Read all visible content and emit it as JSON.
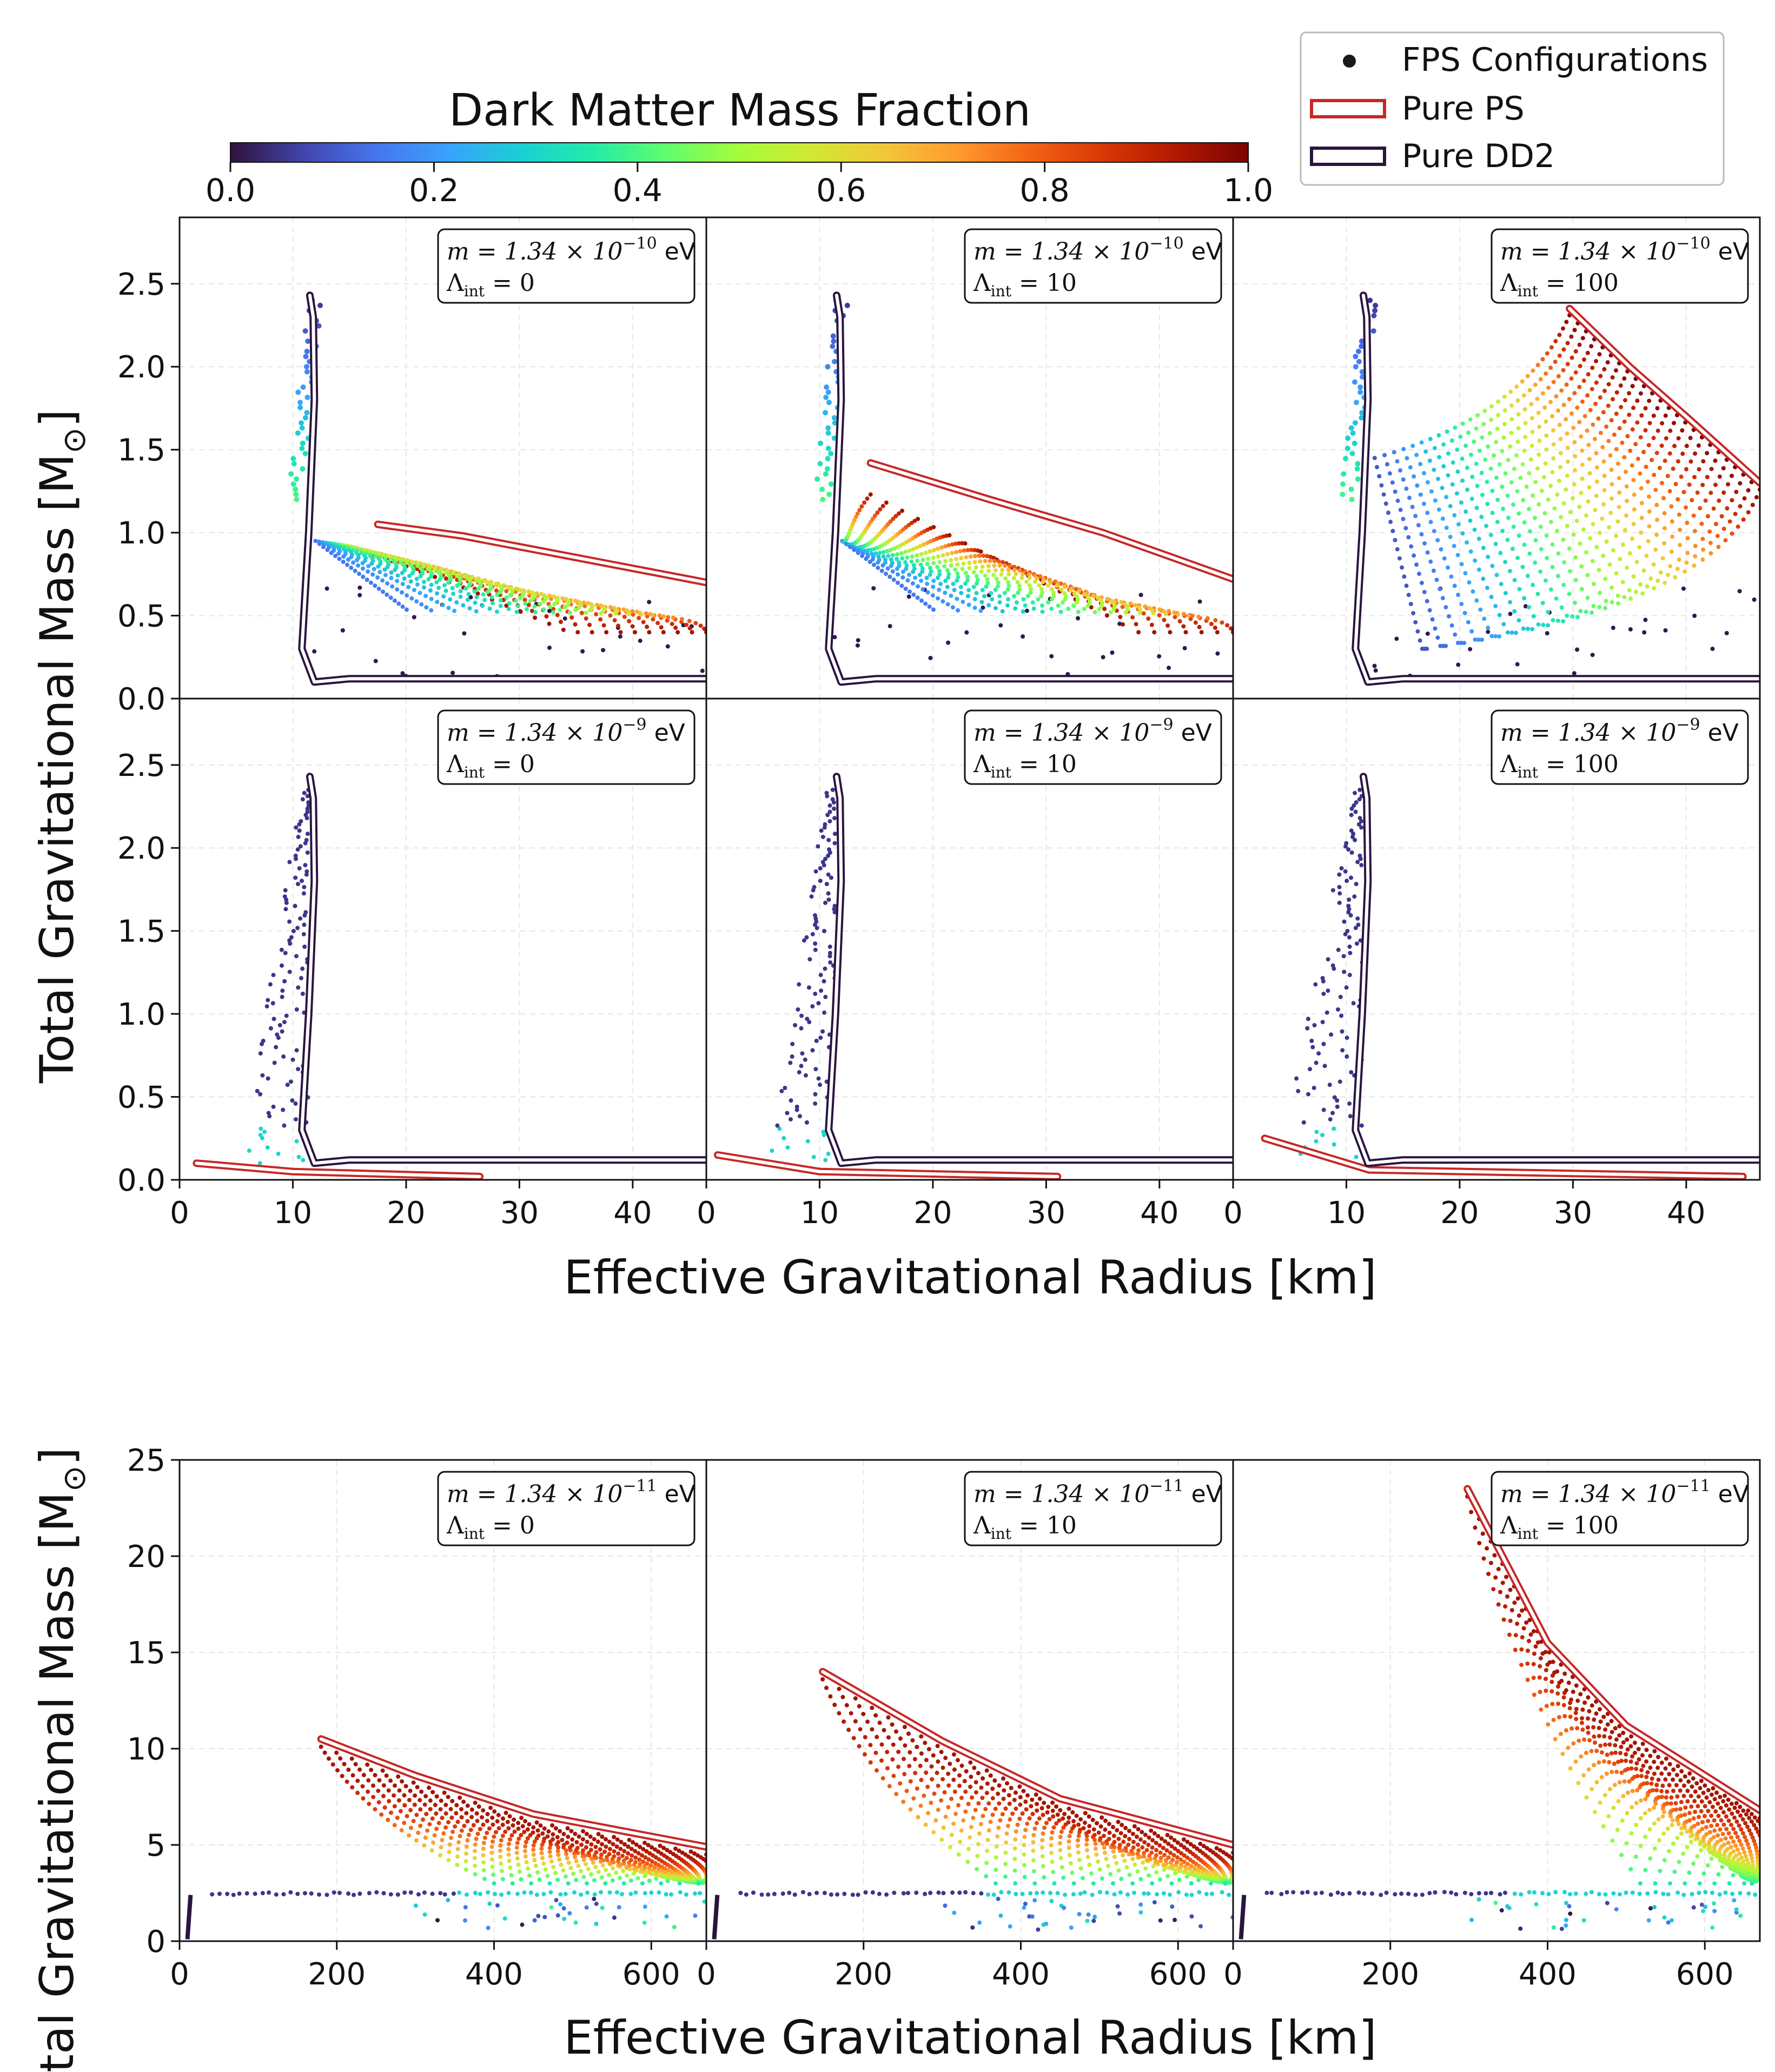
{
  "figure": {
    "colorbar": {
      "title": "Dark Matter Mass Fraction",
      "range": [
        0.0,
        1.0
      ],
      "tick_labels": [
        "0.0",
        "0.2",
        "0.4",
        "0.6",
        "0.8",
        "1.0"
      ],
      "colormap": [
        "#30123b",
        "#4145ab",
        "#4675ed",
        "#39a2fc",
        "#1bcfd4",
        "#24eca6",
        "#61fc6c",
        "#a4fc3b",
        "#d1e834",
        "#f3c63a",
        "#fe9b2d",
        "#f36315",
        "#d93806",
        "#b11901",
        "#7a0402"
      ]
    },
    "legend": {
      "items": [
        {
          "label": "FPS Configurations",
          "kind": "dot",
          "color": "#1a1a1a"
        },
        {
          "label": "Pure PS",
          "kind": "band",
          "color": "#c62828"
        },
        {
          "label": "Pure DD2",
          "kind": "band",
          "color": "#2a1540"
        }
      ]
    },
    "top_block": {
      "ylabel": "Total Gravitational Mass [M",
      "ylabel_sub": "⊙",
      "ylabel_close": "]",
      "xlabel": "Effective Gravitational Radius [km]",
      "xlim": [
        0,
        46.5
      ],
      "ylim": [
        0,
        2.9
      ],
      "xtick_labels": [
        "0",
        "10",
        "20",
        "30",
        "40"
      ],
      "ytick_labels": [
        "0.0",
        "0.5",
        "1.0",
        "1.5",
        "2.0",
        "2.5"
      ]
    },
    "bottom_block": {
      "ylabel": "Total Gravitational Mass [M",
      "ylabel_sub": "⊙",
      "ylabel_close": "]",
      "xlabel": "Effective Gravitational Radius [km]",
      "xlim": [
        0,
        670
      ],
      "ylim": [
        0,
        25
      ],
      "xtick_labels": [
        "0",
        "200",
        "400",
        "600"
      ],
      "ytick_labels": [
        "0",
        "5",
        "10",
        "15",
        "20",
        "25"
      ]
    },
    "annotation_units": "eV",
    "annotation_lambda_prefix": "Λ",
    "annotation_lambda_sub": "int",
    "annotation_m_prefix": "m = 1.34 × 10",
    "panels": [
      {
        "id": "r1c1",
        "mass_exp": "−10",
        "lambda": "= 0"
      },
      {
        "id": "r1c2",
        "mass_exp": "−10",
        "lambda": "= 10"
      },
      {
        "id": "r1c3",
        "mass_exp": "−10",
        "lambda": "= 100"
      },
      {
        "id": "r2c1",
        "mass_exp": "−9",
        "lambda": "= 0"
      },
      {
        "id": "r2c2",
        "mass_exp": "−9",
        "lambda": "= 10"
      },
      {
        "id": "r2c3",
        "mass_exp": "−9",
        "lambda": "= 100"
      },
      {
        "id": "r3c1",
        "mass_exp": "−11",
        "lambda": "= 0"
      },
      {
        "id": "r3c2",
        "mass_exp": "−11",
        "lambda": "= 10"
      },
      {
        "id": "r3c3",
        "mass_exp": "−11",
        "lambda": "= 100"
      }
    ]
  },
  "chart_data": [
    {
      "type": "scatter",
      "panel": "r1c1",
      "title": "m = 1.34 × 10^−10 eV, Λint = 0",
      "xlabel": "Effective Gravitational Radius [km]",
      "ylabel": "Total Gravitational Mass [M⊙]",
      "xlim": [
        0,
        46.5
      ],
      "ylim": [
        0,
        2.9
      ],
      "dd2_curve": [
        [
          11.9,
          0.1
        ],
        [
          10.8,
          0.3
        ],
        [
          11.4,
          1.0
        ],
        [
          11.9,
          1.8
        ],
        [
          11.8,
          2.3
        ],
        [
          11.5,
          2.43
        ]
      ],
      "ps_curve": [
        [
          17.5,
          1.05
        ],
        [
          25,
          0.98
        ],
        [
          35,
          0.85
        ],
        [
          46.5,
          0.7
        ]
      ],
      "fps_sequences": 24
    },
    {
      "type": "scatter",
      "panel": "r1c2",
      "title": "m = 1.34 × 10^−10 eV, Λint = 10",
      "xlabel": "Effective Gravitational Radius [km]",
      "ylabel": "Total Gravitational Mass [M⊙]",
      "xlim": [
        0,
        46.5
      ],
      "ylim": [
        0,
        2.9
      ],
      "dd2_curve": [
        [
          11.9,
          0.1
        ],
        [
          10.8,
          0.3
        ],
        [
          11.4,
          1.0
        ],
        [
          11.9,
          1.8
        ],
        [
          11.8,
          2.3
        ],
        [
          11.5,
          2.43
        ]
      ],
      "ps_curve": [
        [
          14.5,
          1.42
        ],
        [
          25,
          1.2
        ],
        [
          35,
          1.0
        ],
        [
          46.5,
          0.72
        ]
      ],
      "fps_sequences": 24
    },
    {
      "type": "scatter",
      "panel": "r1c3",
      "title": "m = 1.34 × 10^−10 eV, Λint = 100",
      "xlabel": "Effective Gravitational Radius [km]",
      "ylabel": "Total Gravitational Mass [M⊙]",
      "xlim": [
        0,
        46.5
      ],
      "ylim": [
        0,
        2.9
      ],
      "dd2_curve": [
        [
          11.9,
          0.1
        ],
        [
          10.8,
          0.3
        ],
        [
          11.4,
          1.0
        ],
        [
          11.9,
          1.8
        ],
        [
          11.8,
          2.3
        ],
        [
          11.5,
          2.43
        ]
      ],
      "ps_curve": [
        [
          29.7,
          2.35
        ],
        [
          35,
          2.0
        ],
        [
          40,
          1.7
        ],
        [
          46.5,
          1.3
        ]
      ],
      "fps_sequences": 24
    },
    {
      "type": "scatter",
      "panel": "r2c1",
      "title": "m = 1.34 × 10^−9 eV, Λint = 0",
      "xlabel": "Effective Gravitational Radius [km]",
      "ylabel": "Total Gravitational Mass [M⊙]",
      "xlim": [
        0,
        46.5
      ],
      "ylim": [
        0,
        2.9
      ],
      "dd2_curve": [
        [
          11.9,
          0.1
        ],
        [
          10.8,
          0.3
        ],
        [
          11.4,
          1.0
        ],
        [
          11.9,
          1.8
        ],
        [
          11.8,
          2.3
        ],
        [
          11.5,
          2.43
        ]
      ],
      "ps_curve": [
        [
          1.5,
          0.1
        ],
        [
          10,
          0.05
        ],
        [
          26.5,
          0.02
        ]
      ]
    },
    {
      "type": "scatter",
      "panel": "r2c2",
      "title": "m = 1.34 × 10^−9 eV, Λint = 10",
      "xlabel": "Effective Gravitational Radius [km]",
      "ylabel": "Total Gravitational Mass [M⊙]",
      "xlim": [
        0,
        46.5
      ],
      "ylim": [
        0,
        2.9
      ],
      "dd2_curve": [
        [
          11.9,
          0.1
        ],
        [
          10.8,
          0.3
        ],
        [
          11.4,
          1.0
        ],
        [
          11.9,
          1.8
        ],
        [
          11.8,
          2.3
        ],
        [
          11.5,
          2.43
        ]
      ],
      "ps_curve": [
        [
          1.0,
          0.15
        ],
        [
          10,
          0.05
        ],
        [
          31,
          0.02
        ]
      ]
    },
    {
      "type": "scatter",
      "panel": "r2c3",
      "title": "m = 1.34 × 10^−9 eV, Λint = 100",
      "xlabel": "Effective Gravitational Radius [km]",
      "ylabel": "Total Gravitational Mass [M⊙]",
      "xlim": [
        0,
        46.5
      ],
      "ylim": [
        0,
        2.9
      ],
      "dd2_curve": [
        [
          11.9,
          0.1
        ],
        [
          10.8,
          0.3
        ],
        [
          11.4,
          1.0
        ],
        [
          11.9,
          1.8
        ],
        [
          11.8,
          2.3
        ],
        [
          11.5,
          2.43
        ]
      ],
      "ps_curve": [
        [
          2.8,
          0.25
        ],
        [
          12,
          0.06
        ],
        [
          45,
          0.02
        ]
      ]
    },
    {
      "type": "scatter",
      "panel": "r3c1",
      "title": "m = 1.34 × 10^−11 eV, Λint = 0",
      "xlabel": "Effective Gravitational Radius [km]",
      "ylabel": "Total Gravitational Mass [M⊙]",
      "xlim": [
        0,
        670
      ],
      "ylim": [
        0,
        25
      ],
      "ps_curve": [
        [
          180,
          10.5
        ],
        [
          300,
          8.6
        ],
        [
          450,
          6.6
        ],
        [
          670,
          4.9
        ]
      ],
      "dd2_level": 2.4
    },
    {
      "type": "scatter",
      "panel": "r3c2",
      "title": "m = 1.34 × 10^−11 eV, Λint = 10",
      "xlabel": "Effective Gravitational Radius [km]",
      "ylabel": "Total Gravitational Mass [M⊙]",
      "xlim": [
        0,
        670
      ],
      "ylim": [
        0,
        25
      ],
      "ps_curve": [
        [
          148,
          14.0
        ],
        [
          300,
          10.4
        ],
        [
          450,
          7.4
        ],
        [
          670,
          5.0
        ]
      ],
      "dd2_level": 2.4
    },
    {
      "type": "scatter",
      "panel": "r3c3",
      "title": "m = 1.34 × 10^−11 eV, Λint = 100",
      "xlabel": "Effective Gravitational Radius [km]",
      "ylabel": "Total Gravitational Mass [M⊙]",
      "xlim": [
        0,
        670
      ],
      "ylim": [
        0,
        25
      ],
      "ps_curve": [
        [
          298,
          23.5
        ],
        [
          400,
          15.5
        ],
        [
          500,
          11.2
        ],
        [
          670,
          6.8
        ]
      ],
      "dd2_level": 2.4
    }
  ]
}
